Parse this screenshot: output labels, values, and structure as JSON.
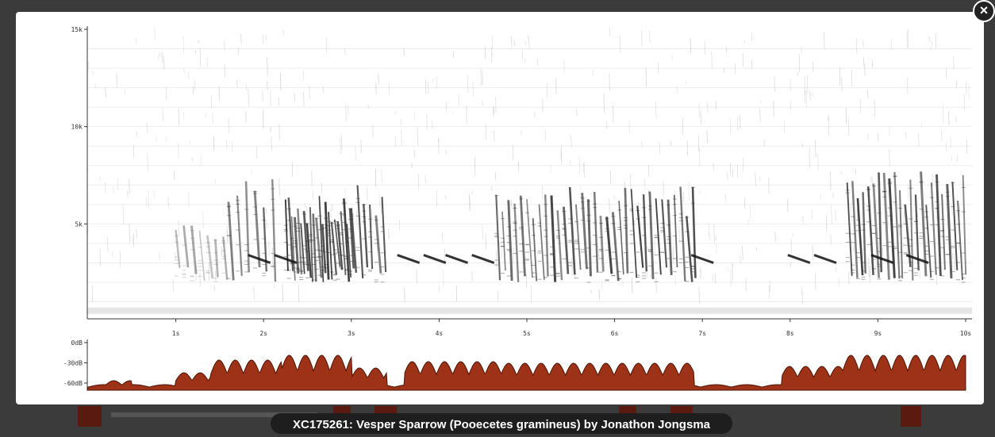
{
  "spectrogram": {
    "yticks": [
      "15k",
      "10k",
      "5k"
    ],
    "xticks": [
      "1s",
      "2s",
      "3s",
      "4s",
      "5s",
      "6s",
      "7s",
      "8s",
      "9s",
      "10s"
    ]
  },
  "amplitude": {
    "yticks": [
      "0dB",
      "-30dB",
      "-60dB"
    ]
  },
  "caption": "XC175261: Vesper Sparrow (Pooecetes gramineus) by Jonathon Jongsma",
  "close_button": "×"
}
